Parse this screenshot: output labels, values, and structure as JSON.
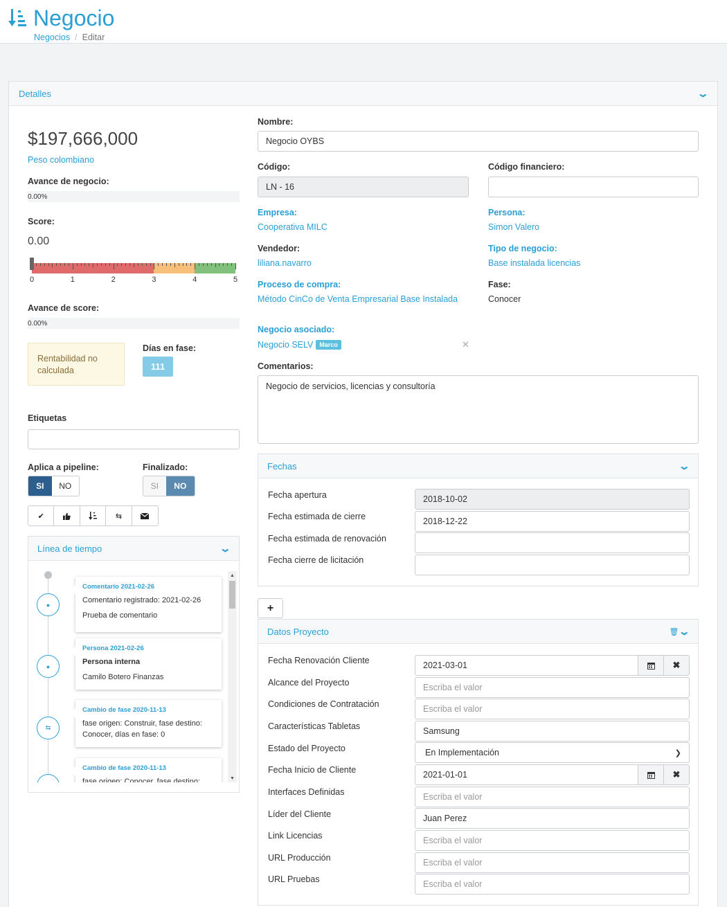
{
  "header": {
    "title": "Negocio",
    "breadcrumb": [
      "Negocios",
      "Editar"
    ]
  },
  "detalles": {
    "title": "Detalles",
    "amount": "$197,666,000",
    "currency": "Peso colombiano",
    "avance_negocio_label": "Avance de negocio:",
    "avance_negocio_value": "0.00%",
    "avance_negocio_fraction": 0,
    "score_label": "Score:",
    "score_value": "0.00",
    "gauge_ticks": [
      "0",
      "1",
      "2",
      "3",
      "4",
      "5"
    ],
    "gauge_value": 0,
    "avance_score_label": "Avance de score:",
    "avance_score_value": "0.00%",
    "rentabilidad": "Rentabilidad no calculada",
    "dias_fase_label": "Días en fase:",
    "dias_fase_value": "111",
    "etiquetas_label": "Etiquetas",
    "etiquetas_value": "",
    "pipeline_label": "Aplica a pipeline:",
    "pipeline_si": "SI",
    "pipeline_no": "NO",
    "pipeline_selected": "SI",
    "finalizado_label": "Finalizado:",
    "finalizado_si": "SI",
    "finalizado_no": "NO",
    "finalizado_selected": "NO",
    "action_icons": [
      "check-icon",
      "thumbs-up-icon",
      "sort-icon",
      "exchange-icon",
      "envelope-icon"
    ]
  },
  "timeline": {
    "title": "Línea de tiempo",
    "items": [
      {
        "icon": "comment-icon",
        "title": "Comentario 2021-02-26",
        "line1": "Comentario registrado: 2021-02-26",
        "line2": "Prueba de comentario",
        "bold": false
      },
      {
        "icon": "user-icon",
        "title": "Persona 2021-02-26",
        "line1": "Persona interna",
        "line2": "Camilo Botero Finanzas",
        "bold": true
      },
      {
        "icon": "exchange-icon",
        "title": "Cambio de fase 2020-11-13",
        "line1": "fase origen: Construir, fase destino: Conocer, días en fase: 0",
        "line2": "",
        "bold": false
      },
      {
        "icon": "exchange-icon",
        "title": "Cambio de fase 2020-11-13",
        "line1": "fase origen: Conocer, fase destino:",
        "line2": "",
        "bold": false
      }
    ]
  },
  "form": {
    "nombre_label": "Nombre:",
    "nombre_value": "Negocio OYBS",
    "codigo_label": "Código:",
    "codigo_value": "LN - 16",
    "codigo_fin_label": "Código financiero:",
    "codigo_fin_value": "",
    "empresa_label": "Empresa:",
    "empresa_value": "Cooperativa MILC",
    "persona_label": "Persona:",
    "persona_value": "Simon Valero",
    "vendedor_label": "Vendedor:",
    "vendedor_value": "liliana.navarro",
    "tipo_label": "Tipo de negocio:",
    "tipo_value": "Base instalada licencias",
    "proceso_label": "Proceso de compra:",
    "proceso_value": "Método CinCo de Venta Empresarial Base Instalada",
    "fase_label": "Fase:",
    "fase_value": "Conocer",
    "asociado_label": "Negocio asociado:",
    "asociado_value": "Negocio SELV",
    "asociado_badge": "Marco",
    "comentarios_label": "Comentarios:",
    "comentarios_value": "Negocio de servicios, licencias y consultoría"
  },
  "fechas": {
    "title": "Fechas",
    "rows": [
      {
        "label": "Fecha apertura",
        "value": "2018-10-02",
        "readonly": true
      },
      {
        "label": "Fecha estimada de cierre",
        "value": "2018-12-22",
        "readonly": false
      },
      {
        "label": "Fecha estimada de renovación",
        "value": "",
        "readonly": false
      },
      {
        "label": "Fecha cierre de licitación",
        "value": "",
        "readonly": false
      }
    ]
  },
  "add_button": "+",
  "proyecto": {
    "title": "Datos Proyecto",
    "placeholder": "Escriba el valor",
    "rows": [
      {
        "label": "Fecha Renovación Cliente",
        "value": "2021-03-01",
        "type": "date"
      },
      {
        "label": "Alcance del Proyecto",
        "value": "",
        "type": "text"
      },
      {
        "label": "Condiciones de Contratación",
        "value": "",
        "type": "text"
      },
      {
        "label": "Características Tabletas",
        "value": "Samsung",
        "type": "text"
      },
      {
        "label": "Estado del Proyecto",
        "value": "En Implementación",
        "type": "select"
      },
      {
        "label": "Fecha Inicio de Cliente",
        "value": "2021-01-01",
        "type": "date"
      },
      {
        "label": "Interfaces Definidas",
        "value": "",
        "type": "text"
      },
      {
        "label": "Líder del Cliente",
        "value": "Juan Perez",
        "type": "text"
      },
      {
        "label": "Link Licencias",
        "value": "",
        "type": "text"
      },
      {
        "label": "URL Producción",
        "value": "",
        "type": "text"
      },
      {
        "label": "URL Pruebas",
        "value": "",
        "type": "text"
      }
    ]
  }
}
